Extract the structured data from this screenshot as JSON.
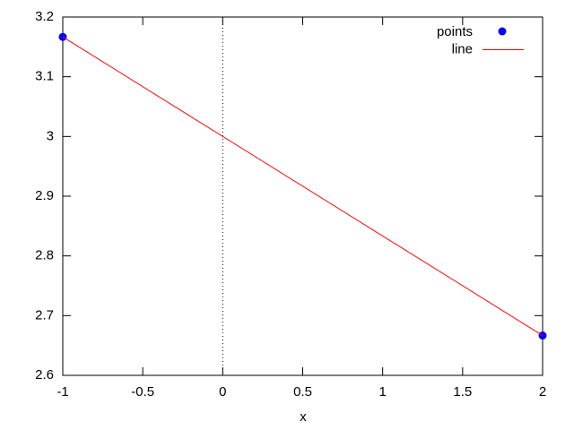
{
  "chart_data": {
    "type": "line",
    "xlabel": "x",
    "series": [
      {
        "name": "points",
        "color": "#0000ff",
        "style": "points",
        "x": [
          -1,
          2
        ],
        "values": [
          3.1667,
          2.6667
        ]
      },
      {
        "name": "line",
        "color": "#ff0000",
        "style": "line",
        "x": [
          -1,
          2
        ],
        "values": [
          3.1667,
          2.6667
        ]
      }
    ],
    "xlim": [
      -1,
      2
    ],
    "ylim": [
      2.6,
      3.2
    ],
    "xticks": [
      -1,
      -0.5,
      0,
      0.5,
      1,
      1.5,
      2
    ],
    "yticks": [
      2.6,
      2.7,
      2.8,
      2.9,
      3,
      3.1,
      3.2
    ],
    "zeroaxis": true,
    "legend": "top-right"
  }
}
